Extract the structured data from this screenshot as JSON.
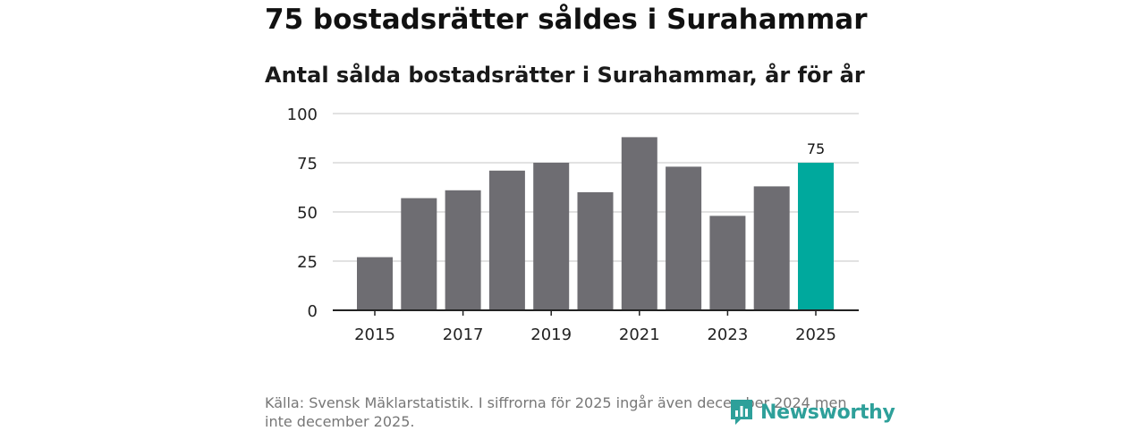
{
  "headline": "75 bostadsrätter såldes i Surahammar",
  "subtitle": "Antal sålda bostadsrätter i Surahammar, år för år",
  "source": "Källa: Svensk Mäklarstatistik. I siffrorna för 2025 ingår även december 2024 men inte december 2025.",
  "logo": {
    "text": "Newsworthy",
    "icon": "newsworthy-logo-icon",
    "color": "#2ea09a"
  },
  "colors": {
    "bar": "#6e6d72",
    "highlight": "#00a99d",
    "grid": "#d9d9d9",
    "axis": "#222222"
  },
  "chart_data": {
    "type": "bar",
    "categories": [
      "2015",
      "2016",
      "2017",
      "2018",
      "2019",
      "2020",
      "2021",
      "2022",
      "2023",
      "2024",
      "2025"
    ],
    "values": [
      27,
      57,
      61,
      71,
      75,
      60,
      88,
      73,
      48,
      63,
      75
    ],
    "x_tick_labels": [
      "2015",
      "2017",
      "2019",
      "2021",
      "2023",
      "2025"
    ],
    "y_ticks": [
      0,
      25,
      50,
      75,
      100
    ],
    "ylim": [
      0,
      100
    ],
    "highlight_category": "2025",
    "data_labels": [
      {
        "category": "2025",
        "text": "75"
      }
    ],
    "grid": true,
    "xlabel": "",
    "ylabel": ""
  }
}
